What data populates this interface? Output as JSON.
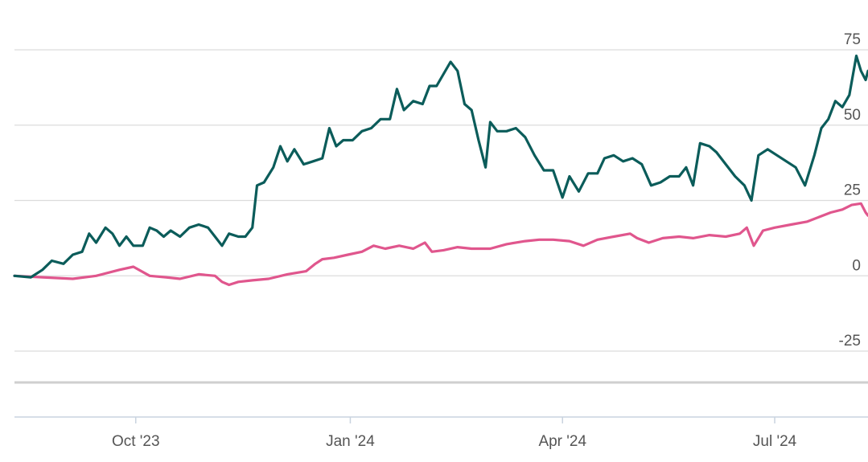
{
  "chart_data": {
    "type": "line",
    "title": "",
    "xlabel": "",
    "ylabel": "",
    "ylim": [
      -25,
      75
    ],
    "y_ticks": [
      75,
      50,
      25,
      0,
      -25
    ],
    "y_tick_labels": [
      "75",
      "50",
      "25",
      "0",
      "-25"
    ],
    "y_axis_position": "right",
    "grid": true,
    "xlim": [
      "2023-08-10",
      "2024-08-10"
    ],
    "x_ticks": [
      {
        "label": "Oct '23",
        "date": "2023-10-01"
      },
      {
        "label": "Jan '24",
        "date": "2024-01-01"
      },
      {
        "label": "Apr '24",
        "date": "2024-04-01"
      },
      {
        "label": "Jul '24",
        "date": "2024-07-01"
      }
    ],
    "colors": {
      "series_1": "#0b5c5a",
      "series_2": "#e0568d",
      "grid": "#dcdcdc",
      "axis": "#c8c8c8"
    },
    "series": [
      {
        "color": "#0b5c5a",
        "points": [
          [
            "2023-08-10",
            0
          ],
          [
            "2023-08-17",
            -0.5
          ],
          [
            "2023-08-22",
            2
          ],
          [
            "2023-08-26",
            5
          ],
          [
            "2023-08-31",
            4
          ],
          [
            "2023-09-04",
            7
          ],
          [
            "2023-09-08",
            8
          ],
          [
            "2023-09-11",
            14
          ],
          [
            "2023-09-14",
            11
          ],
          [
            "2023-09-18",
            16
          ],
          [
            "2023-09-21",
            14
          ],
          [
            "2023-09-24",
            10
          ],
          [
            "2023-09-27",
            13
          ],
          [
            "2023-09-30",
            10
          ],
          [
            "2023-10-04",
            10
          ],
          [
            "2023-10-07",
            16
          ],
          [
            "2023-10-10",
            15
          ],
          [
            "2023-10-13",
            13
          ],
          [
            "2023-10-16",
            15
          ],
          [
            "2023-10-20",
            13
          ],
          [
            "2023-10-24",
            16
          ],
          [
            "2023-10-28",
            17
          ],
          [
            "2023-11-01",
            16
          ],
          [
            "2023-11-04",
            13
          ],
          [
            "2023-11-07",
            10
          ],
          [
            "2023-11-10",
            14
          ],
          [
            "2023-11-14",
            13
          ],
          [
            "2023-11-17",
            13
          ],
          [
            "2023-11-20",
            16
          ],
          [
            "2023-11-22",
            30
          ],
          [
            "2023-11-25",
            31
          ],
          [
            "2023-11-29",
            36
          ],
          [
            "2023-12-02",
            43
          ],
          [
            "2023-12-05",
            38
          ],
          [
            "2023-12-08",
            42
          ],
          [
            "2023-12-12",
            37
          ],
          [
            "2023-12-16",
            38
          ],
          [
            "2023-12-20",
            39
          ],
          [
            "2023-12-23",
            49
          ],
          [
            "2023-12-26",
            43
          ],
          [
            "2023-12-29",
            45
          ],
          [
            "2024-01-02",
            45
          ],
          [
            "2024-01-06",
            48
          ],
          [
            "2024-01-10",
            49
          ],
          [
            "2024-01-14",
            52
          ],
          [
            "2024-01-18",
            52
          ],
          [
            "2024-01-21",
            62
          ],
          [
            "2024-01-24",
            55
          ],
          [
            "2024-01-28",
            58
          ],
          [
            "2024-02-01",
            57
          ],
          [
            "2024-02-04",
            63
          ],
          [
            "2024-02-07",
            63
          ],
          [
            "2024-02-10",
            67
          ],
          [
            "2024-02-13",
            71
          ],
          [
            "2024-02-16",
            68
          ],
          [
            "2024-02-19",
            57
          ],
          [
            "2024-02-22",
            55
          ],
          [
            "2024-02-25",
            45
          ],
          [
            "2024-02-28",
            36
          ],
          [
            "2024-03-01",
            51
          ],
          [
            "2024-03-04",
            48
          ],
          [
            "2024-03-08",
            48
          ],
          [
            "2024-03-12",
            49
          ],
          [
            "2024-03-16",
            46
          ],
          [
            "2024-03-20",
            40
          ],
          [
            "2024-03-24",
            35
          ],
          [
            "2024-03-28",
            35
          ],
          [
            "2024-04-01",
            26
          ],
          [
            "2024-04-04",
            33
          ],
          [
            "2024-04-08",
            28
          ],
          [
            "2024-04-12",
            34
          ],
          [
            "2024-04-16",
            34
          ],
          [
            "2024-04-19",
            39
          ],
          [
            "2024-04-23",
            40
          ],
          [
            "2024-04-27",
            38
          ],
          [
            "2024-05-01",
            39
          ],
          [
            "2024-05-05",
            37
          ],
          [
            "2024-05-09",
            30
          ],
          [
            "2024-05-13",
            31
          ],
          [
            "2024-05-17",
            33
          ],
          [
            "2024-05-21",
            33
          ],
          [
            "2024-05-24",
            36
          ],
          [
            "2024-05-27",
            30
          ],
          [
            "2024-05-30",
            44
          ],
          [
            "2024-06-03",
            43
          ],
          [
            "2024-06-06",
            41
          ],
          [
            "2024-06-10",
            37
          ],
          [
            "2024-06-14",
            33
          ],
          [
            "2024-06-18",
            30
          ],
          [
            "2024-06-21",
            25
          ],
          [
            "2024-06-24",
            40
          ],
          [
            "2024-06-28",
            42
          ],
          [
            "2024-07-02",
            40
          ],
          [
            "2024-07-06",
            38
          ],
          [
            "2024-07-10",
            36
          ],
          [
            "2024-07-14",
            30
          ],
          [
            "2024-07-18",
            40
          ],
          [
            "2024-07-21",
            49
          ],
          [
            "2024-07-24",
            52
          ],
          [
            "2024-07-27",
            58
          ],
          [
            "2024-07-30",
            56
          ],
          [
            "2024-08-02",
            60
          ],
          [
            "2024-08-05",
            73
          ],
          [
            "2024-08-07",
            68
          ],
          [
            "2024-08-09",
            65
          ],
          [
            "2024-08-10",
            68
          ]
        ]
      },
      {
        "color": "#e0568d",
        "points": [
          [
            "2023-08-10",
            0
          ],
          [
            "2023-08-22",
            -0.5
          ],
          [
            "2023-09-04",
            -1
          ],
          [
            "2023-09-14",
            0
          ],
          [
            "2023-09-24",
            2
          ],
          [
            "2023-09-30",
            3
          ],
          [
            "2023-10-07",
            0
          ],
          [
            "2023-10-14",
            -0.5
          ],
          [
            "2023-10-20",
            -1
          ],
          [
            "2023-10-28",
            0.5
          ],
          [
            "2023-11-04",
            0
          ],
          [
            "2023-11-07",
            -2
          ],
          [
            "2023-11-10",
            -3
          ],
          [
            "2023-11-14",
            -2
          ],
          [
            "2023-11-20",
            -1.5
          ],
          [
            "2023-11-27",
            -1
          ],
          [
            "2023-12-05",
            0.5
          ],
          [
            "2023-12-13",
            1.5
          ],
          [
            "2023-12-17",
            4
          ],
          [
            "2023-12-20",
            5.5
          ],
          [
            "2023-12-25",
            6
          ],
          [
            "2023-12-31",
            7
          ],
          [
            "2024-01-06",
            8
          ],
          [
            "2024-01-11",
            10
          ],
          [
            "2024-01-16",
            9
          ],
          [
            "2024-01-22",
            10
          ],
          [
            "2024-01-28",
            9
          ],
          [
            "2024-02-02",
            11
          ],
          [
            "2024-02-05",
            8
          ],
          [
            "2024-02-10",
            8.5
          ],
          [
            "2024-02-16",
            9.5
          ],
          [
            "2024-02-22",
            9
          ],
          [
            "2024-03-01",
            9
          ],
          [
            "2024-03-08",
            10.5
          ],
          [
            "2024-03-16",
            11.5
          ],
          [
            "2024-03-22",
            12
          ],
          [
            "2024-03-28",
            12
          ],
          [
            "2024-04-04",
            11.5
          ],
          [
            "2024-04-10",
            10
          ],
          [
            "2024-04-16",
            12
          ],
          [
            "2024-04-23",
            13
          ],
          [
            "2024-04-30",
            14
          ],
          [
            "2024-05-03",
            12.5
          ],
          [
            "2024-05-08",
            11
          ],
          [
            "2024-05-14",
            12.5
          ],
          [
            "2024-05-21",
            13
          ],
          [
            "2024-05-27",
            12.5
          ],
          [
            "2024-06-03",
            13.5
          ],
          [
            "2024-06-10",
            13
          ],
          [
            "2024-06-16",
            14
          ],
          [
            "2024-06-19",
            16
          ],
          [
            "2024-06-22",
            10
          ],
          [
            "2024-06-26",
            15
          ],
          [
            "2024-07-01",
            16
          ],
          [
            "2024-07-08",
            17
          ],
          [
            "2024-07-15",
            18
          ],
          [
            "2024-07-20",
            19.5
          ],
          [
            "2024-07-25",
            21
          ],
          [
            "2024-07-30",
            22
          ],
          [
            "2024-08-03",
            23.5
          ],
          [
            "2024-08-07",
            24
          ],
          [
            "2024-08-09",
            21
          ],
          [
            "2024-08-10",
            20
          ]
        ]
      }
    ]
  }
}
